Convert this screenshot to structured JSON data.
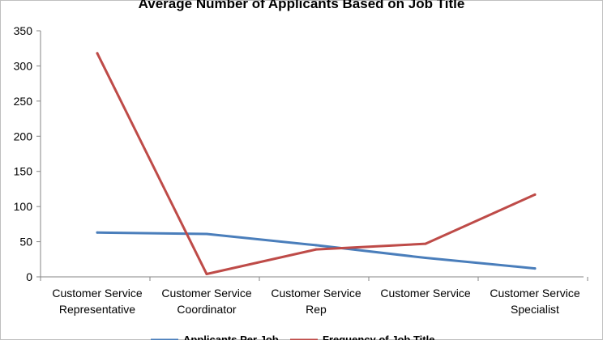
{
  "chart_data": {
    "type": "line",
    "title": "Average Number of Applicants Based on Job Title",
    "xlabel": "",
    "ylabel": "",
    "categories": [
      [
        "Customer Service",
        "Representative"
      ],
      [
        "Customer Service",
        "Coordinator"
      ],
      [
        "Customer Service",
        "Rep"
      ],
      [
        "Customer Service"
      ],
      [
        "Customer Service",
        "Specialist"
      ]
    ],
    "ylim": [
      0,
      350
    ],
    "yticks": [
      0,
      50,
      100,
      150,
      200,
      250,
      300,
      350
    ],
    "grid": false,
    "legend_position": "bottom",
    "series": [
      {
        "name": "Applicants Per Job",
        "color": "#4a7ebb",
        "values": [
          63,
          61,
          45,
          27,
          12
        ]
      },
      {
        "name": "Frequency of Job Title",
        "color": "#be4b48",
        "values": [
          318,
          4,
          39,
          47,
          117
        ]
      }
    ]
  }
}
